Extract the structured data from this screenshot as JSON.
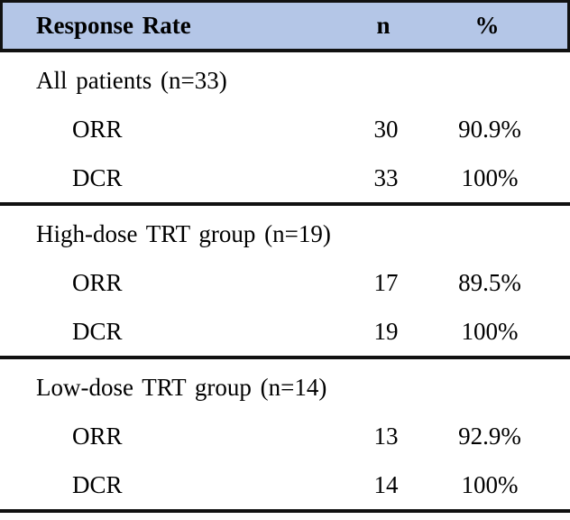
{
  "table": {
    "header": {
      "title": "Response Rate",
      "n": "n",
      "pct": "%"
    },
    "sections": [
      {
        "group": "All patients (n=33)",
        "rows": [
          {
            "label": "ORR",
            "n": "30",
            "pct": "90.9%"
          },
          {
            "label": "DCR",
            "n": "33",
            "pct": "100%"
          }
        ]
      },
      {
        "group": "High-dose TRT group (n=19)",
        "rows": [
          {
            "label": "ORR",
            "n": "17",
            "pct": "89.5%"
          },
          {
            "label": "DCR",
            "n": "19",
            "pct": "100%"
          }
        ]
      },
      {
        "group": "Low-dose TRT group (n=14)",
        "rows": [
          {
            "label": "ORR",
            "n": "13",
            "pct": "92.9%"
          },
          {
            "label": "DCR",
            "n": "14",
            "pct": "100%"
          }
        ]
      }
    ],
    "colors": {
      "header_bg": "#b4c6e7",
      "rule": "#111111",
      "text": "#000000"
    }
  }
}
